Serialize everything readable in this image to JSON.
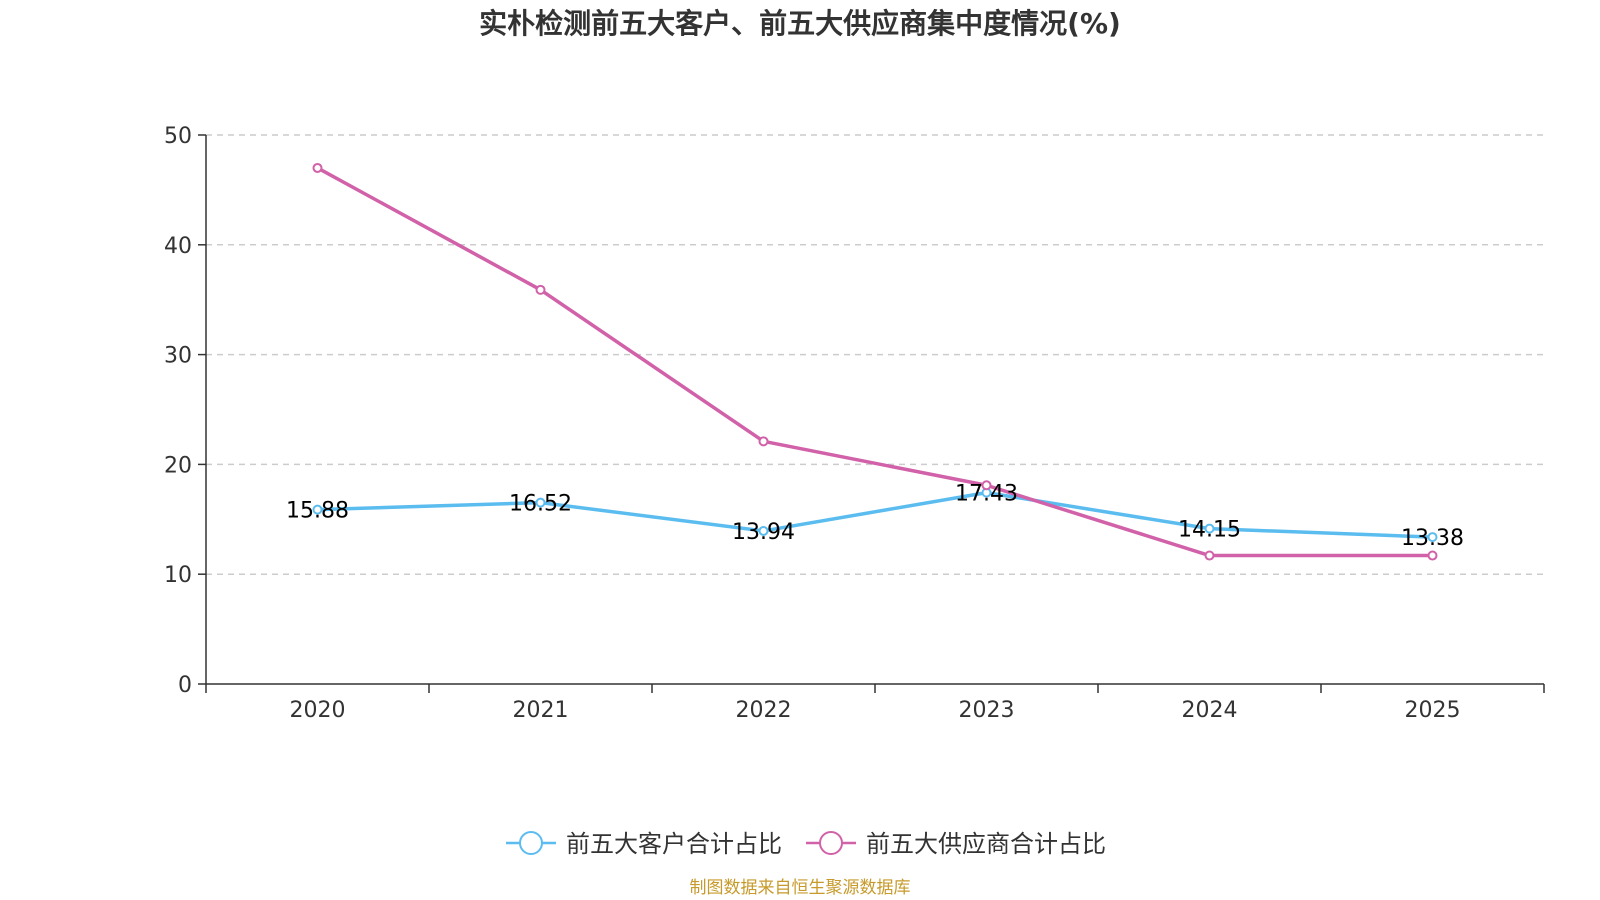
{
  "chart_data": {
    "type": "line",
    "title": "实朴检测前五大客户、前五大供应商集中度情况(%)",
    "xlabel": "",
    "ylabel": "",
    "categories": [
      "2020",
      "2021",
      "2022",
      "2023",
      "2024",
      "2025"
    ],
    "ylim": [
      0,
      50
    ],
    "yticks": [
      0,
      10,
      20,
      30,
      40,
      50
    ],
    "grid": true,
    "legend_position": "bottom",
    "series": [
      {
        "name": "前五大客户合计占比",
        "color": "#5bbcef",
        "values": [
          15.88,
          16.52,
          13.94,
          17.43,
          14.15,
          13.38
        ],
        "labels": [
          "15.88",
          "16.52",
          "13.94",
          "17.43",
          "14.15",
          "13.38"
        ]
      },
      {
        "name": "前五大供应商合计占比",
        "color": "#d161a8",
        "values": [
          47.0,
          35.9,
          22.1,
          18.1,
          11.7,
          11.7
        ]
      }
    ]
  },
  "source_text": "制图数据来自恒生聚源数据库",
  "source_color": "#c79a2b"
}
